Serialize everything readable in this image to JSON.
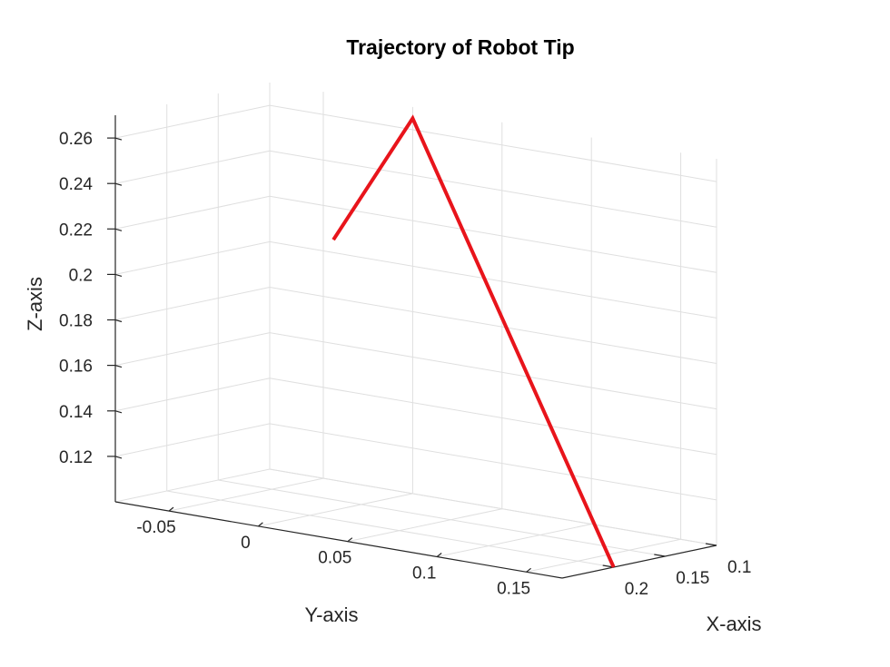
{
  "chart_data": {
    "type": "line3d",
    "title": "Trajectory of Robot Tip",
    "xlabel": "X-axis",
    "ylabel": "Y-axis",
    "zlabel": "Z-axis",
    "grid": true,
    "xlim": [
      0.1,
      0.25
    ],
    "ylim": [
      -0.08,
      0.17
    ],
    "zlim": [
      0.1,
      0.27
    ],
    "x_ticks": [
      "0.1",
      "0.15",
      "0.2"
    ],
    "y_ticks": [
      "-0.05",
      "0",
      "0.05",
      "0.1",
      "0.15"
    ],
    "z_ticks": [
      "0.12",
      "0.14",
      "0.16",
      "0.18",
      "0.2",
      "0.22",
      "0.24",
      "0.26"
    ],
    "series": [
      {
        "color": "#e8141b",
        "points": [
          {
            "x": 0.125,
            "y": -0.03,
            "z": 0.21
          },
          {
            "x": 0.1,
            "y": 0.0,
            "z": 0.265
          },
          {
            "x": 0.2,
            "y": 0.17,
            "z": 0.1
          }
        ]
      }
    ]
  }
}
